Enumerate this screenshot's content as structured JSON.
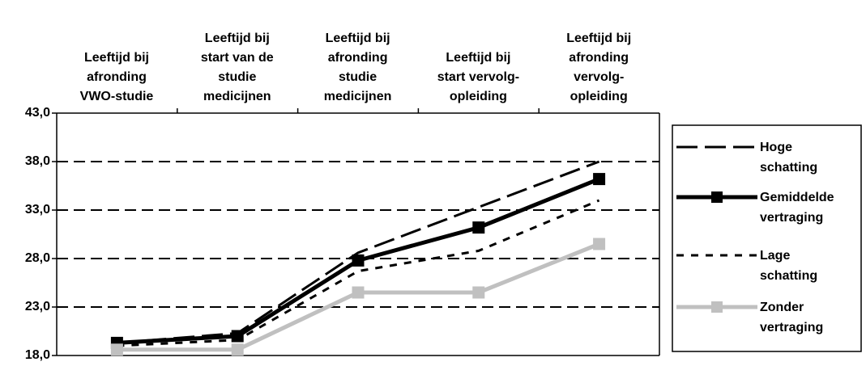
{
  "chart_data": {
    "type": "line",
    "categories": [
      "Leeftijd bij\nafronding\nVWO-studie",
      "Leeftijd bij\nstart van de\nstudie\nmedicijnen",
      "Leeftijd bij\nafronding\nstudie\nmedicijnen",
      "Leeftijd bij\nstart vervolg-\nopleiding",
      "Leeftijd bij\nafronding\nvervolg-\nopleiding"
    ],
    "series": [
      {
        "name": "Hoge\nschatting",
        "color": "#000000",
        "linestyle": "long-dash",
        "marker": "none",
        "values": [
          19.3,
          20.3,
          28.6,
          33.3,
          38.0
        ]
      },
      {
        "name": "Gemiddelde\nvertraging",
        "color": "#000000",
        "linestyle": "solid",
        "marker": "square",
        "values": [
          19.3,
          20.0,
          27.8,
          31.2,
          36.2
        ]
      },
      {
        "name": "Lage\nschatting",
        "color": "#000000",
        "linestyle": "short-dash",
        "marker": "none",
        "values": [
          19.0,
          19.6,
          26.7,
          28.8,
          34.0
        ]
      },
      {
        "name": "Zonder\nvertraging",
        "color": "#c0c0c0",
        "linestyle": "solid",
        "marker": "square",
        "values": [
          18.6,
          18.6,
          24.5,
          24.5,
          29.5
        ]
      }
    ],
    "ylim": [
      18,
      43
    ],
    "yticks": [
      {
        "value": 18,
        "label": "18,0"
      },
      {
        "value": 23,
        "label": "23,0"
      },
      {
        "value": 28,
        "label": "28,0"
      },
      {
        "value": 33,
        "label": "33,0"
      },
      {
        "value": 38,
        "label": "38,0"
      },
      {
        "value": 43,
        "label": "43,0"
      }
    ],
    "grid": true
  }
}
